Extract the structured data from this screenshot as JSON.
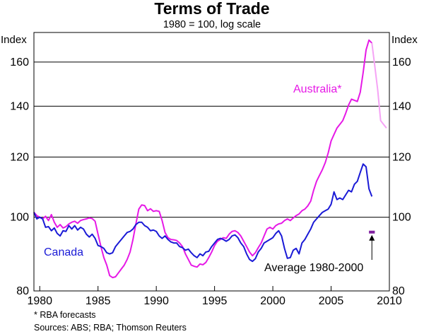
{
  "chart_data": {
    "type": "line",
    "title": "Terms of Trade",
    "subtitle": "1980 = 100, log scale",
    "y_unit_left": "Index",
    "y_unit_right": "Index",
    "y_scale": "log",
    "ylim": [
      80,
      175
    ],
    "xlim": [
      1979.5,
      2010
    ],
    "y_ticks": [
      80,
      100,
      120,
      140,
      160
    ],
    "y_tick_labels": [
      "80",
      "100",
      "120",
      "140",
      "160"
    ],
    "x_ticks": [
      1980,
      1985,
      1990,
      1995,
      2000,
      2005,
      2010
    ],
    "x_tick_labels": [
      "1980",
      "1985",
      "1990",
      "1995",
      "2000",
      "2005",
      "2010"
    ],
    "grid": "horizontal",
    "colors": {
      "australia": "#e619e6",
      "australia_forecast": "#f5a3f5",
      "canada": "#1a1ad6",
      "average_marker": "#8020a0"
    },
    "series": [
      {
        "name": "Australia*",
        "points": [
          [
            1979.5,
            101.5
          ],
          [
            1979.75,
            100.5
          ],
          [
            1980.0,
            100.0
          ],
          [
            1980.25,
            99.5
          ],
          [
            1980.5,
            100.3
          ],
          [
            1980.75,
            99.0
          ],
          [
            1981.0,
            100.8
          ],
          [
            1981.25,
            98.5
          ],
          [
            1981.5,
            97.0
          ],
          [
            1981.75,
            97.8
          ],
          [
            1982.0,
            96.8
          ],
          [
            1982.25,
            97.2
          ],
          [
            1982.5,
            98.0
          ],
          [
            1982.75,
            98.5
          ],
          [
            1983.0,
            98.8
          ],
          [
            1983.25,
            98.2
          ],
          [
            1983.5,
            99.0
          ],
          [
            1983.75,
            99.3
          ],
          [
            1984.0,
            99.5
          ],
          [
            1984.25,
            99.8
          ],
          [
            1984.5,
            99.6
          ],
          [
            1984.75,
            98.8
          ],
          [
            1985.0,
            95.0
          ],
          [
            1985.25,
            91.5
          ],
          [
            1985.5,
            88.5
          ],
          [
            1985.75,
            86.5
          ],
          [
            1986.0,
            83.8
          ],
          [
            1986.25,
            83.3
          ],
          [
            1986.5,
            83.5
          ],
          [
            1986.75,
            84.5
          ],
          [
            1987.0,
            85.5
          ],
          [
            1987.25,
            86.5
          ],
          [
            1987.5,
            88.0
          ],
          [
            1987.75,
            90.0
          ],
          [
            1988.0,
            93.5
          ],
          [
            1988.25,
            98.0
          ],
          [
            1988.5,
            102.5
          ],
          [
            1988.75,
            103.8
          ],
          [
            1989.0,
            103.6
          ],
          [
            1989.25,
            102.0
          ],
          [
            1989.5,
            102.6
          ],
          [
            1989.75,
            101.8
          ],
          [
            1990.0,
            102.0
          ],
          [
            1990.25,
            101.8
          ],
          [
            1990.5,
            99.0
          ],
          [
            1990.75,
            95.5
          ],
          [
            1991.0,
            94.0
          ],
          [
            1991.25,
            93.5
          ],
          [
            1991.5,
            93.4
          ],
          [
            1991.75,
            93.2
          ],
          [
            1992.0,
            92.5
          ],
          [
            1992.25,
            91.5
          ],
          [
            1992.5,
            89.5
          ],
          [
            1992.75,
            88.0
          ],
          [
            1993.0,
            86.5
          ],
          [
            1993.25,
            86.2
          ],
          [
            1993.5,
            86.0
          ],
          [
            1993.75,
            86.8
          ],
          [
            1994.0,
            86.6
          ],
          [
            1994.25,
            87.2
          ],
          [
            1994.5,
            88.5
          ],
          [
            1994.75,
            90.0
          ],
          [
            1995.0,
            91.8
          ],
          [
            1995.25,
            93.0
          ],
          [
            1995.5,
            93.5
          ],
          [
            1995.75,
            94.0
          ],
          [
            1996.0,
            93.8
          ],
          [
            1996.25,
            95.0
          ],
          [
            1996.5,
            95.8
          ],
          [
            1996.75,
            96.0
          ],
          [
            1997.0,
            95.5
          ],
          [
            1997.25,
            94.5
          ],
          [
            1997.5,
            93.0
          ],
          [
            1997.75,
            91.5
          ],
          [
            1998.0,
            90.0
          ],
          [
            1998.25,
            89.0
          ],
          [
            1998.5,
            89.8
          ],
          [
            1998.75,
            91.2
          ],
          [
            1999.0,
            92.5
          ],
          [
            1999.25,
            94.5
          ],
          [
            1999.5,
            96.5
          ],
          [
            1999.75,
            97.0
          ],
          [
            2000.0,
            96.5
          ],
          [
            2000.25,
            97.5
          ],
          [
            2000.5,
            98.0
          ],
          [
            2000.75,
            98.2
          ],
          [
            2001.0,
            99.0
          ],
          [
            2001.25,
            99.5
          ],
          [
            2001.5,
            99.0
          ],
          [
            2001.75,
            99.8
          ],
          [
            2002.0,
            100.5
          ],
          [
            2002.25,
            101.0
          ],
          [
            2002.5,
            102.0
          ],
          [
            2002.75,
            102.5
          ],
          [
            2003.0,
            103.5
          ],
          [
            2003.25,
            105.0
          ],
          [
            2003.5,
            108.5
          ],
          [
            2003.75,
            111.5
          ],
          [
            2004.0,
            113.5
          ],
          [
            2004.25,
            115.5
          ],
          [
            2004.5,
            118.0
          ],
          [
            2004.75,
            121.5
          ],
          [
            2005.0,
            126.0
          ],
          [
            2005.25,
            128.5
          ],
          [
            2005.5,
            131.0
          ],
          [
            2005.75,
            132.5
          ],
          [
            2006.0,
            134.0
          ],
          [
            2006.25,
            137.0
          ],
          [
            2006.5,
            140.5
          ],
          [
            2006.75,
            143.0
          ],
          [
            2007.0,
            142.5
          ],
          [
            2007.25,
            142.0
          ],
          [
            2007.5,
            146.0
          ],
          [
            2007.75,
            155.0
          ],
          [
            2008.0,
            166.0
          ],
          [
            2008.25,
            171.0
          ],
          [
            2008.5,
            169.5
          ]
        ]
      },
      {
        "name": "Australia* (RBA forecasts)",
        "dashed": false,
        "points": [
          [
            2008.5,
            169.5
          ],
          [
            2008.75,
            158.0
          ],
          [
            2009.0,
            147.0
          ],
          [
            2009.25,
            134.0
          ],
          [
            2009.5,
            132.5
          ],
          [
            2009.75,
            131.0
          ]
        ]
      },
      {
        "name": "Canada",
        "points": [
          [
            1979.5,
            101.5
          ],
          [
            1979.75,
            99.5
          ],
          [
            1980.0,
            100.0
          ],
          [
            1980.25,
            99.5
          ],
          [
            1980.5,
            97.0
          ],
          [
            1980.75,
            97.2
          ],
          [
            1981.0,
            96.0
          ],
          [
            1981.25,
            96.8
          ],
          [
            1981.5,
            95.2
          ],
          [
            1981.75,
            94.5
          ],
          [
            1982.0,
            96.0
          ],
          [
            1982.25,
            95.8
          ],
          [
            1982.5,
            97.5
          ],
          [
            1982.75,
            96.5
          ],
          [
            1983.0,
            97.5
          ],
          [
            1983.25,
            96.2
          ],
          [
            1983.5,
            97.0
          ],
          [
            1983.75,
            96.5
          ],
          [
            1984.0,
            95.0
          ],
          [
            1984.25,
            94.2
          ],
          [
            1984.5,
            95.0
          ],
          [
            1984.75,
            93.8
          ],
          [
            1985.0,
            91.8
          ],
          [
            1985.25,
            91.5
          ],
          [
            1985.5,
            91.0
          ],
          [
            1985.75,
            89.8
          ],
          [
            1986.0,
            89.5
          ],
          [
            1986.25,
            89.8
          ],
          [
            1986.5,
            91.5
          ],
          [
            1986.75,
            92.5
          ],
          [
            1987.0,
            93.5
          ],
          [
            1987.25,
            94.5
          ],
          [
            1987.5,
            95.5
          ],
          [
            1987.75,
            95.8
          ],
          [
            1988.0,
            96.5
          ],
          [
            1988.25,
            97.8
          ],
          [
            1988.5,
            98.5
          ],
          [
            1988.75,
            98.5
          ],
          [
            1989.0,
            97.5
          ],
          [
            1989.25,
            97.0
          ],
          [
            1989.5,
            96.0
          ],
          [
            1989.75,
            96.2
          ],
          [
            1990.0,
            95.8
          ],
          [
            1990.25,
            94.5
          ],
          [
            1990.5,
            93.8
          ],
          [
            1990.75,
            94.5
          ],
          [
            1991.0,
            93.5
          ],
          [
            1991.25,
            92.8
          ],
          [
            1991.5,
            92.5
          ],
          [
            1991.75,
            92.5
          ],
          [
            1992.0,
            91.5
          ],
          [
            1992.25,
            91.2
          ],
          [
            1992.5,
            90.5
          ],
          [
            1992.75,
            90.8
          ],
          [
            1993.0,
            89.8
          ],
          [
            1993.25,
            89.0
          ],
          [
            1993.5,
            88.5
          ],
          [
            1993.75,
            89.5
          ],
          [
            1994.0,
            89.0
          ],
          [
            1994.25,
            90.0
          ],
          [
            1994.5,
            90.2
          ],
          [
            1994.75,
            91.5
          ],
          [
            1995.0,
            92.5
          ],
          [
            1995.25,
            93.5
          ],
          [
            1995.5,
            93.8
          ],
          [
            1995.75,
            93.5
          ],
          [
            1996.0,
            93.0
          ],
          [
            1996.25,
            93.5
          ],
          [
            1996.5,
            94.5
          ],
          [
            1996.75,
            94.8
          ],
          [
            1997.0,
            94.0
          ],
          [
            1997.25,
            92.5
          ],
          [
            1997.5,
            91.5
          ],
          [
            1997.75,
            89.5
          ],
          [
            1998.0,
            88.0
          ],
          [
            1998.25,
            87.5
          ],
          [
            1998.5,
            88.2
          ],
          [
            1998.75,
            90.0
          ],
          [
            1999.0,
            91.0
          ],
          [
            1999.25,
            92.5
          ],
          [
            1999.5,
            93.0
          ],
          [
            1999.75,
            93.5
          ],
          [
            2000.0,
            94.0
          ],
          [
            2000.25,
            95.2
          ],
          [
            2000.5,
            96.0
          ],
          [
            2000.75,
            94.5
          ],
          [
            2001.0,
            91.0
          ],
          [
            2001.25,
            88.3
          ],
          [
            2001.5,
            88.5
          ],
          [
            2001.75,
            90.5
          ],
          [
            2002.0,
            91.0
          ],
          [
            2002.25,
            89.5
          ],
          [
            2002.5,
            92.5
          ],
          [
            2002.75,
            93.5
          ],
          [
            2003.0,
            95.0
          ],
          [
            2003.25,
            96.5
          ],
          [
            2003.5,
            98.5
          ],
          [
            2003.75,
            99.5
          ],
          [
            2004.0,
            100.5
          ],
          [
            2004.25,
            101.5
          ],
          [
            2004.5,
            102.0
          ],
          [
            2004.75,
            102.5
          ],
          [
            2005.0,
            104.0
          ],
          [
            2005.25,
            108.0
          ],
          [
            2005.5,
            105.5
          ],
          [
            2005.75,
            106.0
          ],
          [
            2006.0,
            105.5
          ],
          [
            2006.25,
            107.0
          ],
          [
            2006.5,
            108.5
          ],
          [
            2006.75,
            108.0
          ],
          [
            2007.0,
            110.5
          ],
          [
            2007.25,
            111.5
          ],
          [
            2007.5,
            114.5
          ],
          [
            2007.75,
            117.5
          ],
          [
            2008.0,
            116.5
          ],
          [
            2008.25,
            109.0
          ],
          [
            2008.5,
            106.5
          ]
        ]
      }
    ],
    "annotations": {
      "australia_label": "Australia*",
      "canada_label": "Canada",
      "average_label": "Average 1980-2000",
      "average_marker": {
        "x_start": 2008.25,
        "x_end": 2008.75,
        "y": 95.6
      }
    },
    "footnotes": [
      "* RBA forecasts",
      "Sources: ABS; RBA; Thomson Reuters"
    ]
  }
}
